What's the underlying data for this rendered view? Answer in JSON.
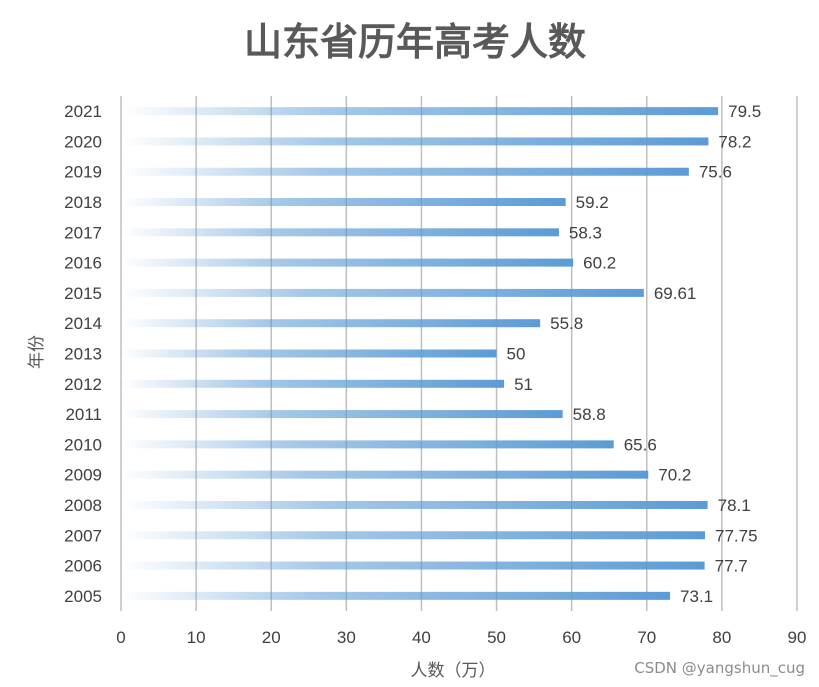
{
  "chart_data": {
    "type": "bar",
    "orientation": "horizontal",
    "title": "山东省历年高考人数",
    "xlabel": "人数（万）",
    "ylabel": "年份",
    "categories": [
      "2005",
      "2006",
      "2007",
      "2008",
      "2009",
      "2010",
      "2011",
      "2012",
      "2013",
      "2014",
      "2015",
      "2016",
      "2017",
      "2018",
      "2019",
      "2020",
      "2021"
    ],
    "values": [
      73.1,
      77.7,
      77.75,
      78.1,
      70.2,
      65.6,
      58.8,
      51,
      50,
      55.8,
      69.61,
      60.2,
      58.3,
      59.2,
      75.6,
      78.2,
      79.5
    ],
    "data_labels": [
      "73.1",
      "77.7",
      "77.75",
      "78.1",
      "70.2",
      "65.6",
      "58.8",
      "51",
      "50",
      "55.8",
      "69.61",
      "60.2",
      "58.3",
      "59.2",
      "75.6",
      "78.2",
      "79.5"
    ],
    "xlim": [
      0,
      90
    ],
    "xticks": [
      "0",
      "10",
      "20",
      "30",
      "40",
      "50",
      "60",
      "70",
      "80",
      "90"
    ],
    "grid": "vertical",
    "legend": "none",
    "bar_color": "#5b9bd5"
  },
  "watermark": "CSDN @yangshun_cug"
}
